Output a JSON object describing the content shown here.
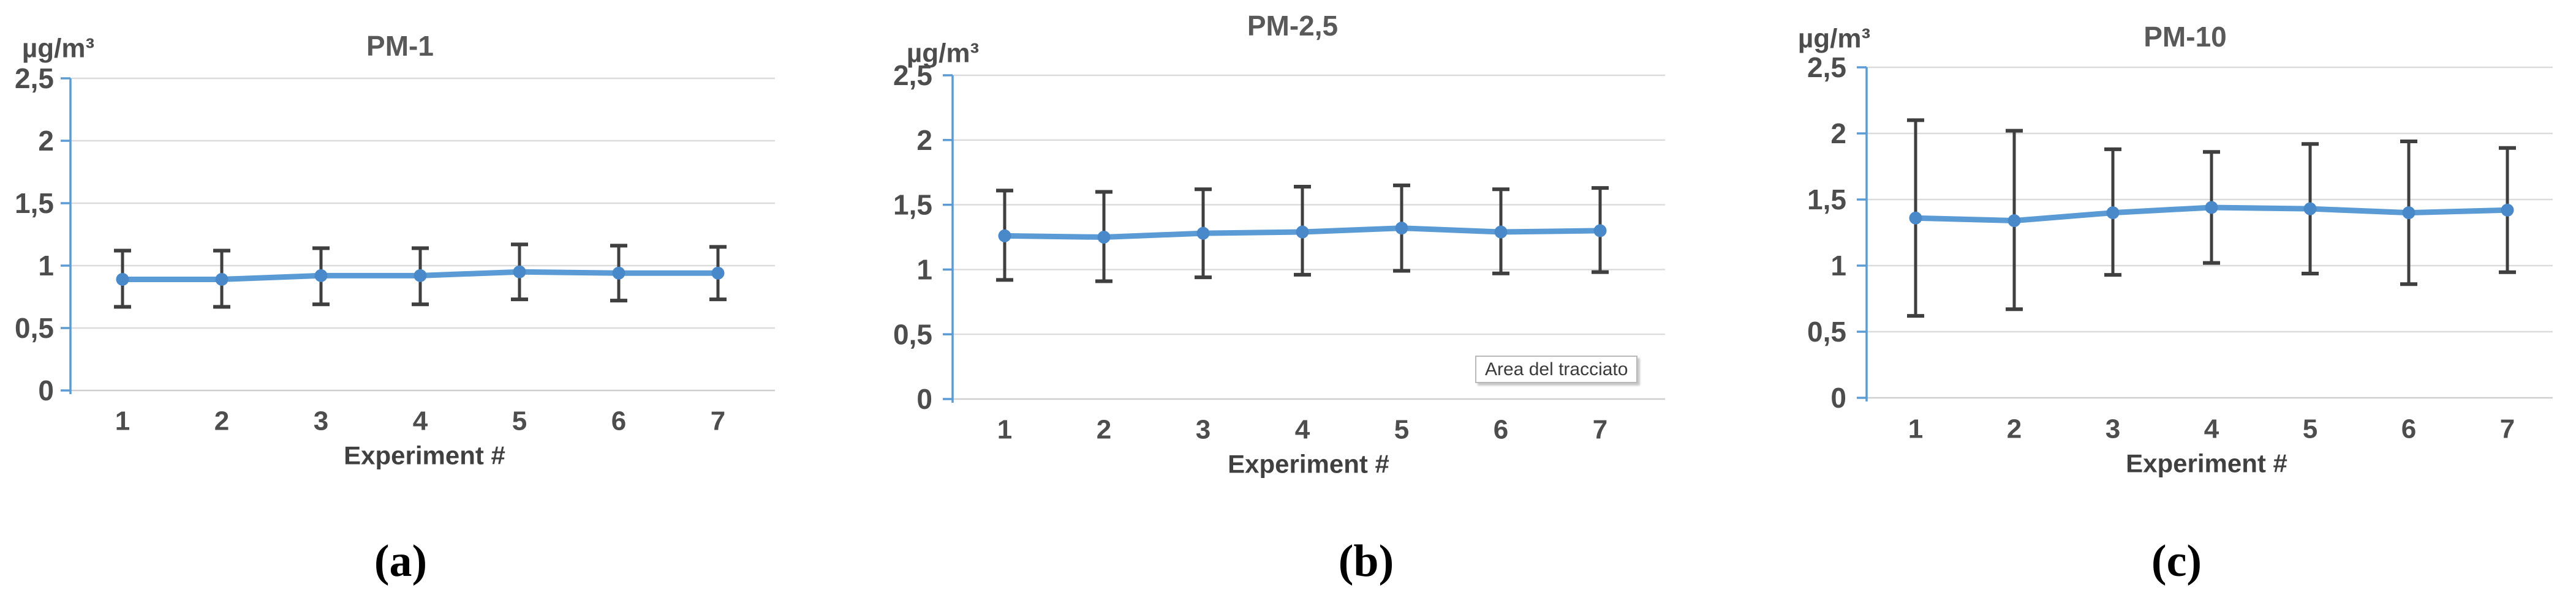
{
  "figure": {
    "panel_letters": [
      "(a)",
      "(b)",
      "(c)"
    ],
    "y_axis_unit": "µg/m³",
    "x_axis_label": "Experiment #",
    "y_tick_labels": [
      "0",
      "0,5",
      "1",
      "1,5",
      "2",
      "2,5"
    ],
    "y_tick_values": [
      0,
      0.5,
      1,
      1.5,
      2,
      2.5
    ],
    "x_tick_labels": [
      "1",
      "2",
      "3",
      "4",
      "5",
      "6",
      "7"
    ]
  },
  "colors": {
    "line": "#5b9bd5",
    "marker": "#4a89c9",
    "error_bar": "#3f3f3f",
    "gridline": "#dbdbdb",
    "gridline_zero": "#cfcfcf",
    "axis": "#5b9bd5",
    "title_text": "#595959",
    "tick_text": "#4d4d4d",
    "axis_label_text": "#404040",
    "letter_text": "#000000"
  },
  "chart_data": [
    {
      "type": "line",
      "title": "PM-1",
      "xlabel": "Experiment #",
      "ylabel": "µg/m³",
      "ylim": [
        0,
        2.5
      ],
      "grid": true,
      "categories": [
        1,
        2,
        3,
        4,
        5,
        6,
        7
      ],
      "series": [
        {
          "name": "mean",
          "values": [
            0.89,
            0.89,
            0.92,
            0.92,
            0.95,
            0.94,
            0.94
          ]
        },
        {
          "name": "error_upper",
          "values": [
            1.12,
            1.12,
            1.14,
            1.14,
            1.17,
            1.16,
            1.15
          ]
        },
        {
          "name": "error_lower",
          "values": [
            0.67,
            0.67,
            0.69,
            0.69,
            0.73,
            0.72,
            0.73
          ]
        }
      ]
    },
    {
      "type": "line",
      "title": "PM-2,5",
      "xlabel": "Experiment #",
      "ylabel": "µg/m³",
      "ylim": [
        0,
        2.5
      ],
      "grid": true,
      "tooltip": "Area del tracciato",
      "categories": [
        1,
        2,
        3,
        4,
        5,
        6,
        7
      ],
      "series": [
        {
          "name": "mean",
          "values": [
            1.26,
            1.25,
            1.28,
            1.29,
            1.32,
            1.29,
            1.3
          ]
        },
        {
          "name": "error_upper",
          "values": [
            1.61,
            1.6,
            1.62,
            1.64,
            1.65,
            1.62,
            1.63
          ]
        },
        {
          "name": "error_lower",
          "values": [
            0.92,
            0.91,
            0.94,
            0.96,
            0.99,
            0.97,
            0.98
          ]
        }
      ]
    },
    {
      "type": "line",
      "title": "PM-10",
      "xlabel": "Experiment #",
      "ylabel": "µg/m³",
      "ylim": [
        0,
        2.5
      ],
      "grid": true,
      "categories": [
        1,
        2,
        3,
        4,
        5,
        6,
        7
      ],
      "series": [
        {
          "name": "mean",
          "values": [
            1.36,
            1.34,
            1.4,
            1.44,
            1.43,
            1.4,
            1.42
          ]
        },
        {
          "name": "error_upper",
          "values": [
            2.1,
            2.02,
            1.88,
            1.86,
            1.92,
            1.94,
            1.89
          ]
        },
        {
          "name": "error_lower",
          "values": [
            0.62,
            0.67,
            0.93,
            1.02,
            0.94,
            0.86,
            0.95
          ]
        }
      ]
    }
  ]
}
